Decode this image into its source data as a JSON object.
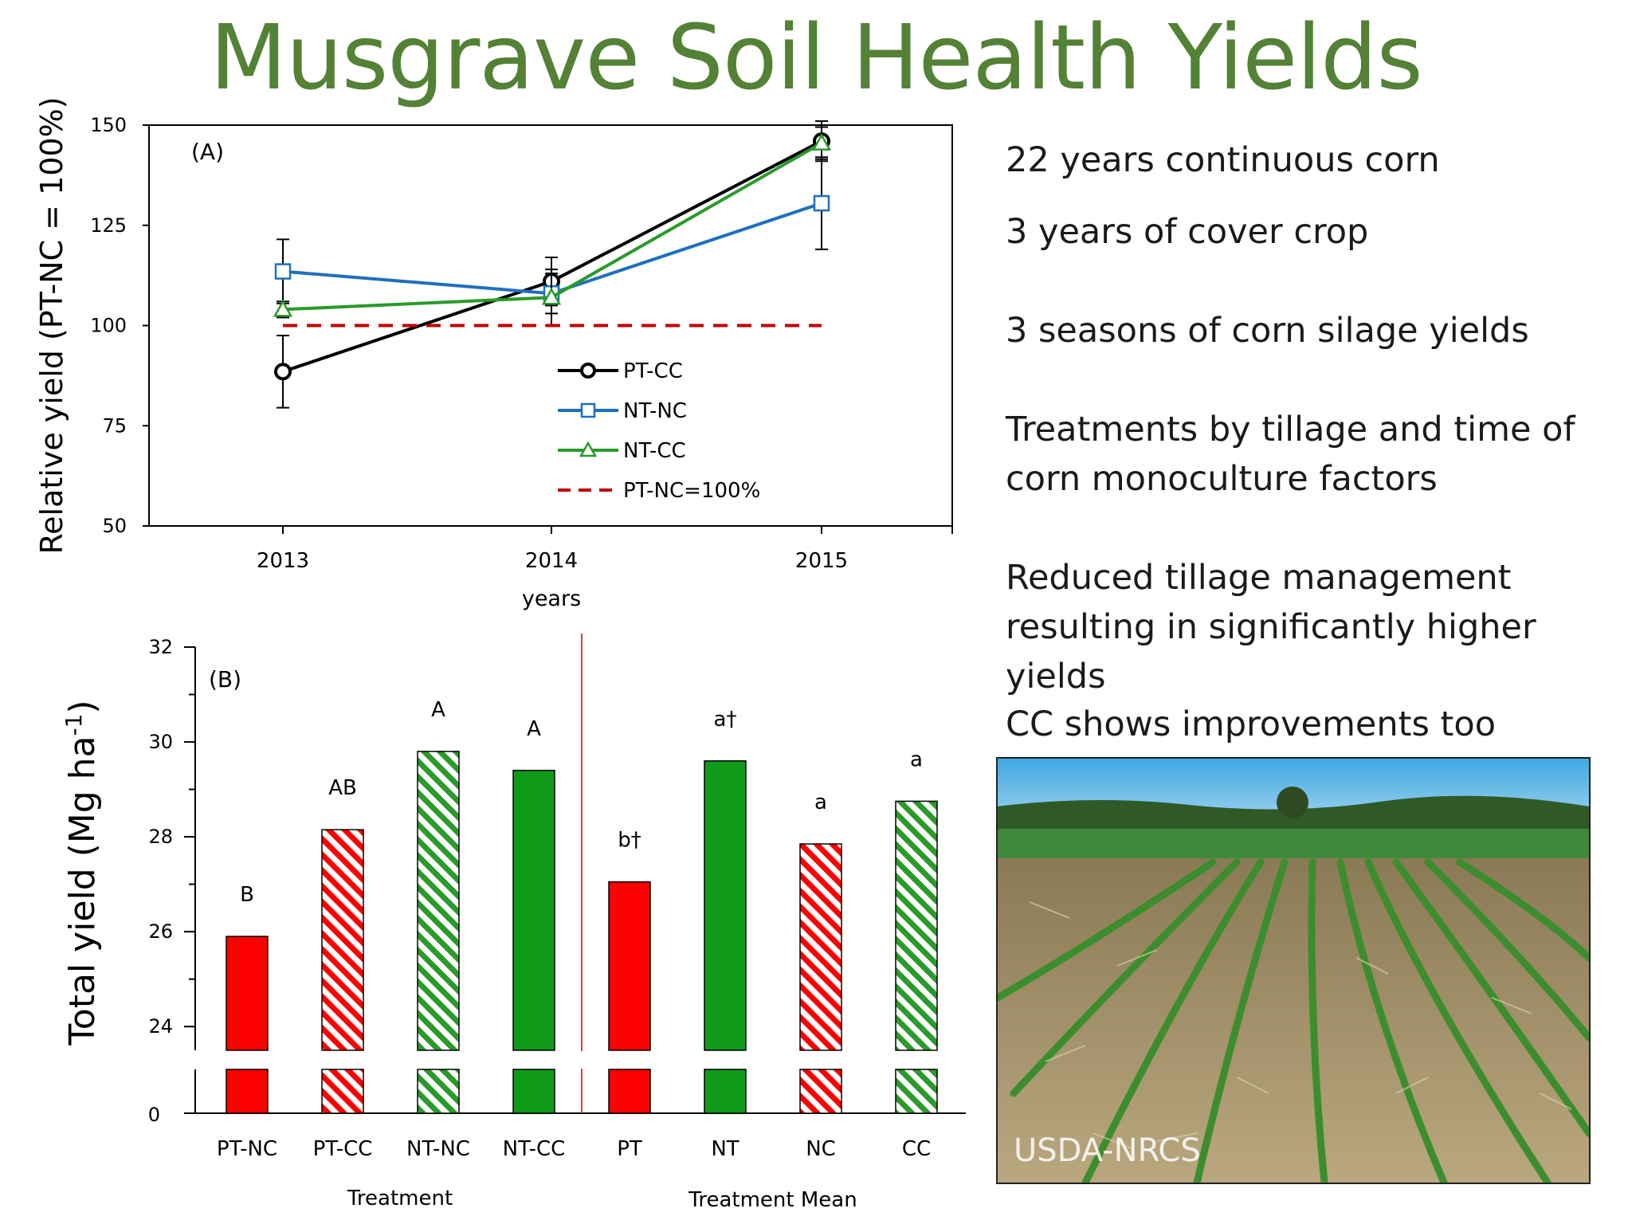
{
  "title": "Musgrave Soil Health Yields",
  "bullets": [
    "22 years continuous corn",
    "3 years of cover crop",
    "3 seasons of corn silage yields",
    "Treatments by tillage and time of corn monoculture factors",
    "Reduced tillage management resulting in significantly higher yields",
    "CC shows improvements too"
  ],
  "photo": {
    "credit": "USDA-NRCS"
  },
  "colors": {
    "title": "#538135",
    "black": "#000000",
    "blue": "#1f6fbf",
    "green": "#2a9a2a",
    "red": "#ff0000",
    "dashed": "#c00000"
  },
  "chart_data": [
    {
      "type": "line",
      "panel_label": "(A)",
      "x": [
        2013,
        2014,
        2015
      ],
      "xlabel": "years",
      "ylabel": "Relative yield (PT-NC = 100%)",
      "ylim": [
        50,
        150
      ],
      "yticks": [
        50,
        75,
        100,
        125,
        150
      ],
      "grid": false,
      "legend_position": "bottom-center",
      "series": [
        {
          "name": "PT-CC",
          "marker": "circle",
          "color": "#000000",
          "values": [
            88.5,
            111,
            146
          ],
          "err": [
            9,
            6,
            5
          ]
        },
        {
          "name": "NT-NC",
          "marker": "square",
          "color": "#1f6fbf",
          "values": [
            113.5,
            108,
            130.5
          ],
          "err": [
            8,
            5,
            11.5
          ]
        },
        {
          "name": "NT-CC",
          "marker": "triangle",
          "color": "#2a9a2a",
          "values": [
            104,
            107,
            145.5
          ],
          "err": [
            2,
            7,
            4
          ]
        },
        {
          "name": "PT-NC=100%",
          "style": "dashed",
          "color": "#c00000",
          "values": [
            100,
            100,
            100
          ]
        }
      ]
    },
    {
      "type": "bar",
      "panel_label": "(B)",
      "ylabel": "Total yield (Mg ha",
      "ylabel_sup": "-1",
      "ylabel_close": ")",
      "axis_break": true,
      "ylim": [
        23.5,
        32
      ],
      "yticks": [
        24,
        26,
        28,
        30,
        32
      ],
      "yticks_major": [
        24,
        26,
        28,
        30,
        32
      ],
      "zero_tick": "0",
      "categories": [
        "PT-NC",
        "PT-CC",
        "NT-NC",
        "NT-CC",
        "PT",
        "NT",
        "NC",
        "CC"
      ],
      "values": [
        25.9,
        28.15,
        29.8,
        29.4,
        27.05,
        29.6,
        27.85,
        28.75
      ],
      "letters": [
        "B",
        "AB",
        "A",
        "A",
        "b†",
        "a†",
        "a",
        "a"
      ],
      "colors": [
        "red",
        "red",
        "green",
        "green",
        "red",
        "green",
        "red",
        "green"
      ],
      "hatched": [
        false,
        true,
        true,
        false,
        false,
        false,
        true,
        true
      ],
      "groups": [
        {
          "label": "Treatment"
        },
        {
          "label": "Treatment Mean"
        }
      ]
    }
  ]
}
